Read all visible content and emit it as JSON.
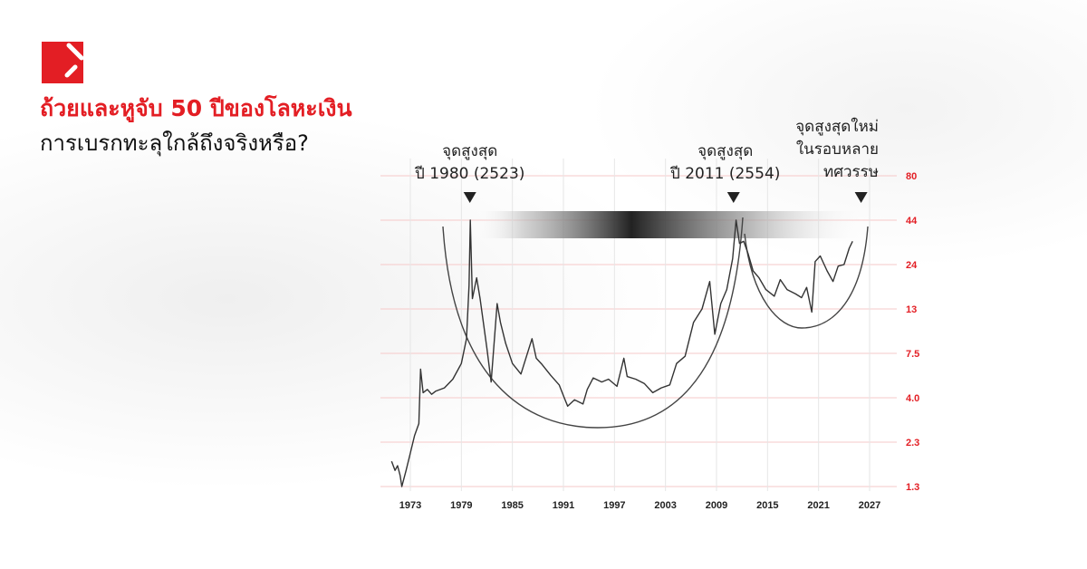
{
  "header": {
    "title": "ถ้วยและหูจับ 50 ปีของโลหะเงิน",
    "subtitle": "การเบรกทะลุใกล้ถึงจริงหรือ?",
    "logo": "red square logo with diagonal slashes"
  },
  "colors": {
    "accent": "#e31e24",
    "line": "#333333",
    "grid": "#f6c9c9"
  },
  "annotations": [
    {
      "line1": "จุดสูงสุด",
      "line2": "ปี 1980 (2523)",
      "year": 1980
    },
    {
      "line1": "จุดสูงสุด",
      "line2": "ปี 2011 (2554)",
      "year": 2011
    },
    {
      "line1": "จุดสูงสุดใหม่",
      "line2": "ในรอบหลาย",
      "line3": "ทศวรรษ",
      "year": 2026
    }
  ],
  "chart_data": {
    "type": "line",
    "y_scale": "log",
    "grid": true,
    "x_ticks": [
      "1973",
      "1979",
      "1985",
      "1991",
      "1997",
      "2003",
      "2009",
      "2015",
      "2021",
      "2027"
    ],
    "y_ticks": [
      "80",
      "44",
      "24",
      "13",
      "7.5",
      "4.0",
      "2.3",
      "1.3"
    ],
    "xlim": [
      1970,
      2028
    ],
    "ylim": [
      1.3,
      80
    ],
    "series": [
      {
        "x": [
          1970.8,
          1971.2,
          1971.5,
          1971.8,
          1972.0,
          1972.5,
          1973.0,
          1973.5,
          1974.0,
          1974.2,
          1974.5,
          1975.0,
          1975.5,
          1976.0,
          1977.0,
          1978.0,
          1979.0,
          1979.6,
          1979.9,
          1980.05,
          1980.3,
          1980.8,
          1981.2,
          1982.0,
          1982.5,
          1983.2,
          1983.6,
          1984.2,
          1985.0,
          1986.0,
          1987.3,
          1987.8,
          1988.5,
          1989.5,
          1990.5,
          1991.1,
          1991.5,
          1992.3,
          1993.3,
          1993.8,
          1994.5,
          1995.5,
          1996.3,
          1997.3,
          1998.1,
          1998.5,
          1999.5,
          2000.5,
          2001.5,
          2002.5,
          2003.5,
          2004.3,
          2005.3,
          2006.3,
          2007.3,
          2008.2,
          2008.8,
          2009.5,
          2010.2,
          2010.9,
          2011.3,
          2011.7,
          2012.2,
          2012.7,
          2013.3,
          2014.0,
          2014.8,
          2015.8,
          2016.5,
          2017.3,
          2018.3,
          2019.0,
          2019.6,
          2020.2,
          2020.6,
          2021.2,
          2022.0,
          2022.7,
          2023.3,
          2024.0,
          2024.6,
          2025.0
        ],
        "y": [
          1.8,
          1.6,
          1.7,
          1.5,
          1.3,
          1.6,
          2.0,
          2.5,
          2.9,
          6.0,
          4.3,
          4.5,
          4.2,
          4.4,
          4.6,
          5.2,
          6.5,
          9.0,
          18,
          44,
          15,
          20,
          15,
          8,
          5.0,
          14,
          11,
          8.5,
          6.5,
          5.6,
          9.0,
          7.0,
          6.4,
          5.5,
          4.8,
          4.0,
          3.6,
          3.9,
          3.7,
          4.5,
          5.3,
          5.0,
          5.2,
          4.7,
          7.0,
          5.4,
          5.2,
          4.9,
          4.3,
          4.6,
          4.8,
          6.5,
          7.2,
          11,
          13,
          19,
          9.5,
          14,
          17,
          26,
          44,
          32,
          33,
          28,
          22,
          20,
          17,
          15.5,
          19.5,
          17,
          16,
          15.2,
          17.5,
          12.5,
          25,
          27,
          22,
          19,
          23.5,
          24,
          30,
          33
        ]
      }
    ]
  }
}
